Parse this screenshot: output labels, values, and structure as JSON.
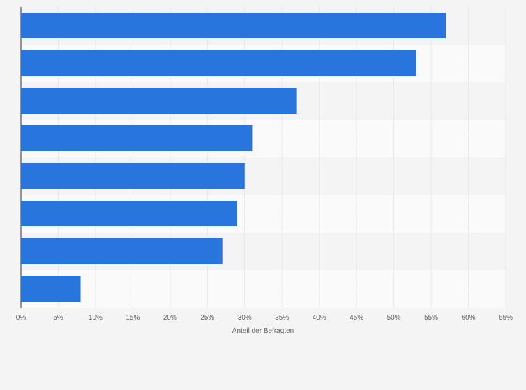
{
  "chart_data": {
    "type": "bar",
    "orientation": "horizontal",
    "categories": [
      "",
      "",
      "",
      "",
      "",
      "",
      "",
      ""
    ],
    "values": [
      57,
      53,
      37,
      31,
      30,
      29,
      27,
      8
    ],
    "xlabel": "Anteil der Befragten",
    "ylabel": "",
    "xlim": [
      0,
      65
    ],
    "xticks": [
      "0%",
      "5%",
      "10%",
      "15%",
      "20%",
      "25%",
      "30%",
      "35%",
      "40%",
      "45%",
      "50%",
      "55%",
      "60%",
      "65%"
    ],
    "grid": true,
    "bar_color": "#2876dd"
  }
}
